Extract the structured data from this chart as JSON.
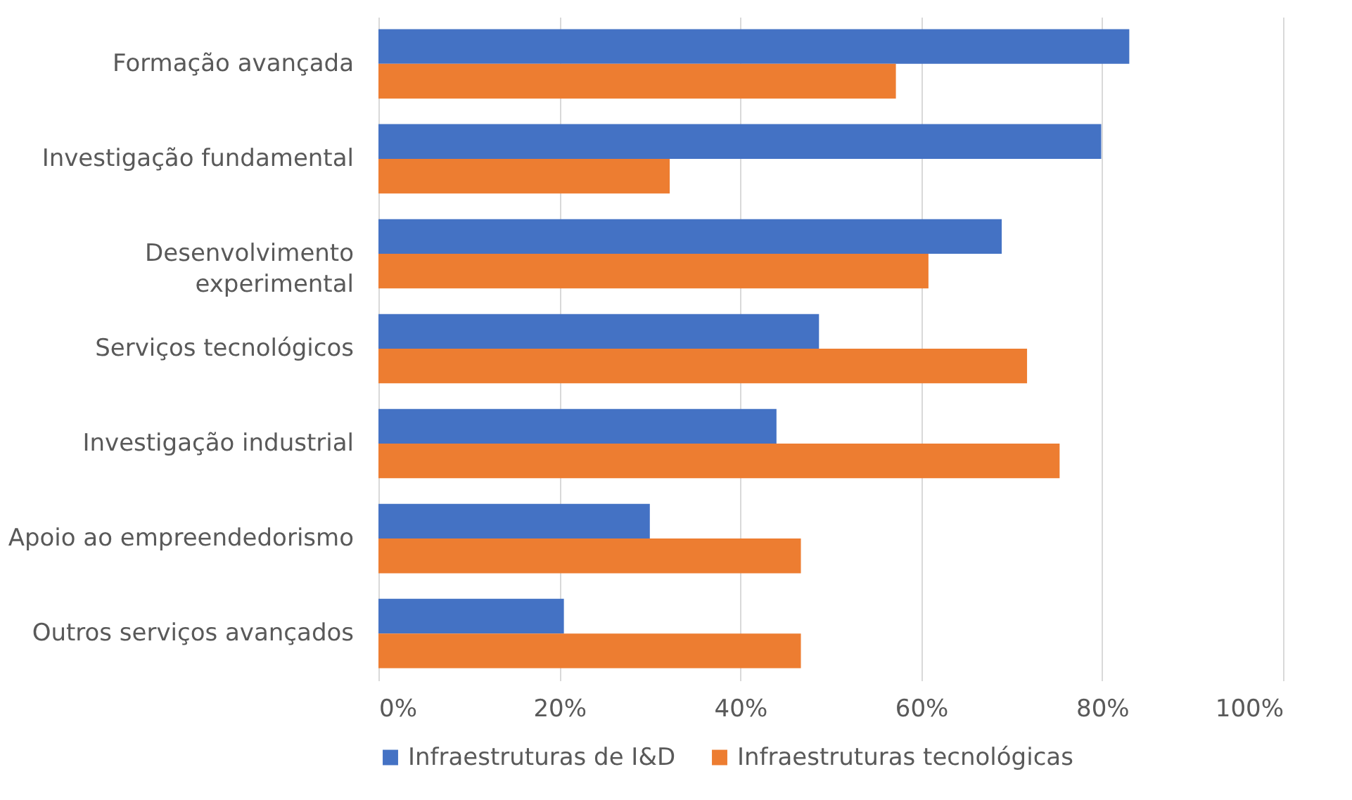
{
  "chart_data": {
    "type": "bar",
    "orientation": "horizontal",
    "categories": [
      "Formação avançada",
      "Investigação fundamental",
      "Desenvolvimento experimental",
      "Serviços tecnológicos",
      "Investigação industrial",
      "Apoio ao empreendedorismo",
      "Outros serviços avançados"
    ],
    "series": [
      {
        "name": "Infraestruturas de I&D",
        "color": "#4472c4",
        "values": [
          83.0,
          79.9,
          68.9,
          48.7,
          44.0,
          30.0,
          20.5
        ]
      },
      {
        "name": "Infraestruturas tecnológicas",
        "color": "#ed7d31",
        "values": [
          57.2,
          32.2,
          60.8,
          71.7,
          75.3,
          46.7,
          46.7
        ]
      }
    ],
    "xlim": [
      0,
      100
    ],
    "xticks": [
      {
        "value": 0,
        "label": "0%"
      },
      {
        "value": 20,
        "label": "20%"
      },
      {
        "value": 40,
        "label": "40%"
      },
      {
        "value": 60,
        "label": "60%"
      },
      {
        "value": 80,
        "label": "80%"
      },
      {
        "value": 100,
        "label": "100%"
      }
    ],
    "grid": "x",
    "legend": "bottom"
  }
}
